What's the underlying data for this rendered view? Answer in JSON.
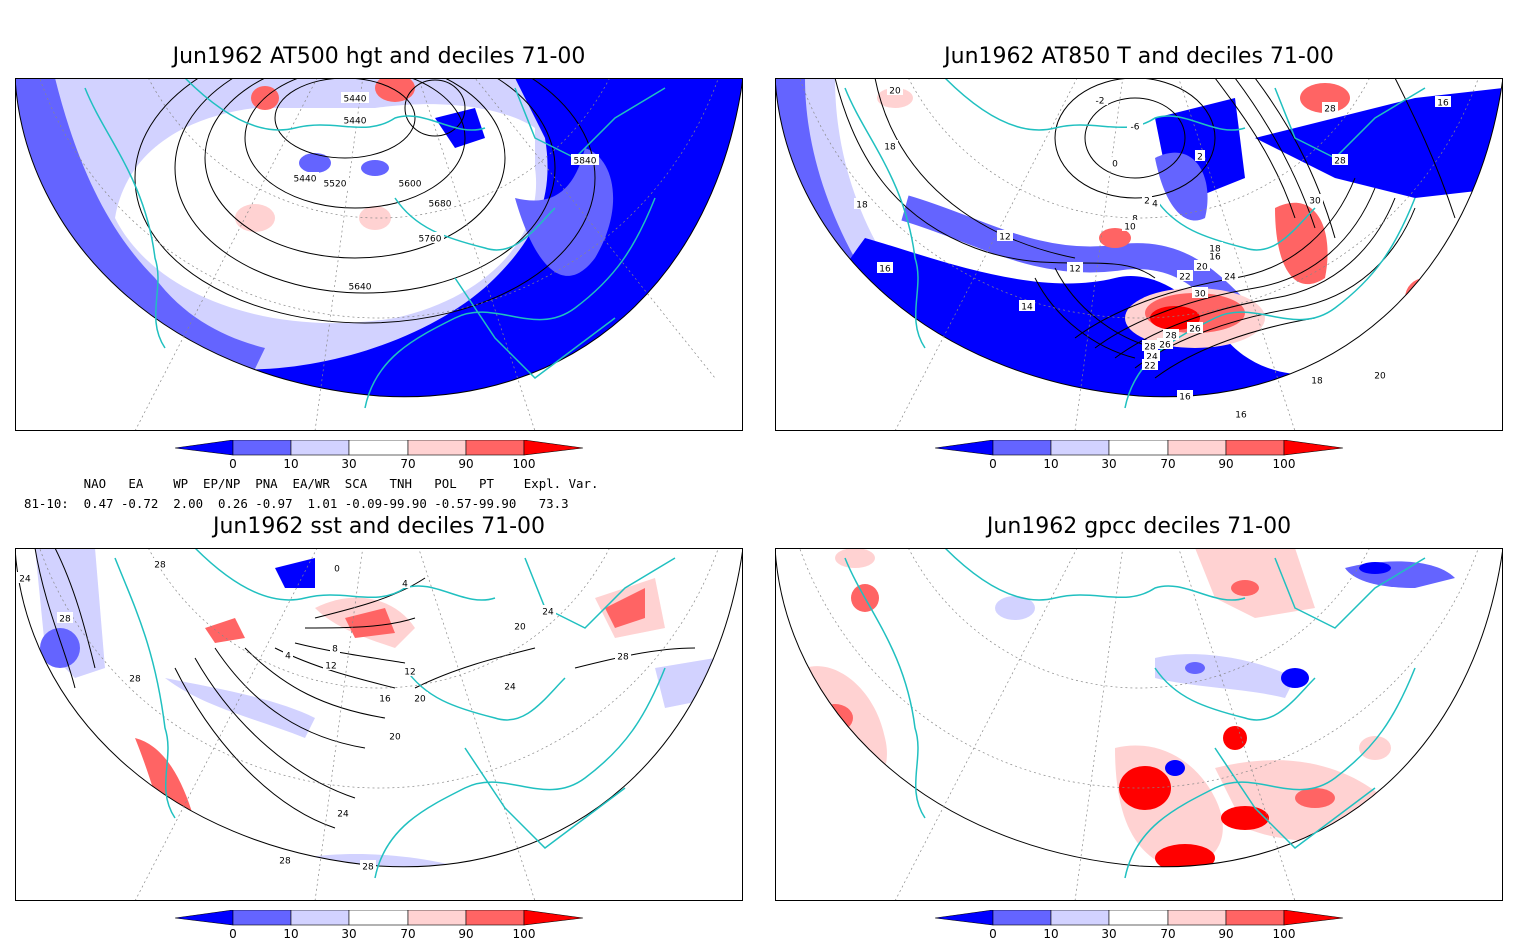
{
  "panels": [
    {
      "title": "Jun1962 AT500 hgt and deciles 71-00",
      "contour_labels": [
        "5440",
        "5440",
        "5440",
        "5520",
        "5600",
        "5680",
        "5760",
        "5840",
        "5640"
      ]
    },
    {
      "title": "Jun1962 AT850 T and deciles 71-00",
      "contour_labels": [
        "20",
        "18",
        "18",
        "16",
        "14",
        "12",
        "12",
        "2",
        "-2",
        "-6",
        "0",
        "2",
        "4",
        "8",
        "10",
        "16",
        "18",
        "20",
        "22",
        "24",
        "26",
        "28",
        "30",
        "30",
        "28",
        "26",
        "24",
        "22",
        "16",
        "16",
        "18",
        "20",
        "16",
        "28",
        "28"
      ]
    },
    {
      "title": "Jun1962 sst and deciles 71-00",
      "contour_labels": [
        "24",
        "28",
        "28",
        "28",
        "0",
        "4",
        "4",
        "8",
        "12",
        "12",
        "16",
        "20",
        "20",
        "24",
        "24",
        "28",
        "28",
        "20",
        "24",
        "28"
      ]
    },
    {
      "title": "Jun1962 gpcc deciles 71-00",
      "contour_labels": []
    }
  ],
  "colorbar": {
    "ticks": [
      "0",
      "10",
      "30",
      "70",
      "90",
      "100"
    ],
    "colors": {
      "below_0": "#0000ff",
      "0_10": "#6464ff",
      "10_30": "#d2d2ff",
      "30_70": "#ffffff",
      "70_90": "#ffd2d2",
      "90_100": "#ff6464",
      "above_100": "#ff0000"
    }
  },
  "indices": {
    "header": "        NAO   EA    WP  EP/NP  PNA  EA/WR  SCA   TNH   POL   PT    Expl. Var.",
    "row": "81-10:  0.47 -0.72  2.00  0.26 -0.97  1.01 -0.09-99.90 -0.57-99.90   73.3"
  },
  "style": {
    "coast_color": "#20c0c0",
    "contour_color": "#000000"
  }
}
